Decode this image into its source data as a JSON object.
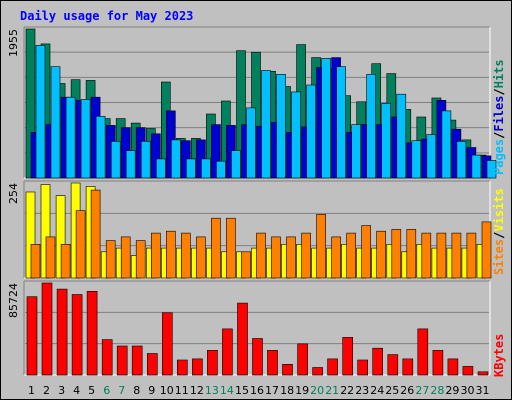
{
  "colors": {
    "background": "#c0c0c0",
    "hits": "#00805c",
    "files": "#0000d0",
    "pages": "#00c0ff",
    "visits": "#ffff00",
    "sites": "#ff8000",
    "kbytes": "#ff0000",
    "title": "#0000ff",
    "weekend_label": "#00805c"
  },
  "chart_data": {
    "type": "bar",
    "title": "Daily usage for May 2023",
    "categories": [
      "1",
      "2",
      "3",
      "4",
      "5",
      "6",
      "7",
      "8",
      "9",
      "10",
      "11",
      "12",
      "13",
      "14",
      "15",
      "16",
      "17",
      "18",
      "19",
      "20",
      "21",
      "22",
      "23",
      "24",
      "25",
      "26",
      "27",
      "28",
      "29",
      "30",
      "31"
    ],
    "weekend_days": [
      "6",
      "7",
      "13",
      "14",
      "20",
      "21",
      "27",
      "28"
    ],
    "panels": [
      {
        "name": "top",
        "scale_label": "1955",
        "ymax": 1955,
        "legend": [
          "Pages",
          "/",
          "Files",
          "/",
          "Hits"
        ],
        "legend_colors": [
          "pages",
          "black",
          "files",
          "black",
          "hits"
        ],
        "series": [
          {
            "name": "Hits",
            "color": "hits",
            "values": [
              1955,
              1760,
              1240,
              1290,
              1280,
              780,
              780,
              720,
              650,
              1260,
              520,
              520,
              840,
              1010,
              1670,
              1650,
              1400,
              1200,
              1750,
              1580,
              1440,
              1080,
              1000,
              1500,
              1370,
              900,
              800,
              1050,
              760,
              500,
              300
            ]
          },
          {
            "name": "Files",
            "color": "files",
            "values": [
              600,
              700,
              1060,
              1020,
              1060,
              690,
              660,
              660,
              580,
              880,
              490,
              500,
              700,
              690,
              700,
              680,
              730,
              600,
              670,
              1450,
              1580,
              600,
              700,
              700,
              800,
              460,
              510,
              1020,
              640,
              400,
              290
            ]
          },
          {
            "name": "Pages",
            "color": "pages",
            "values": [
              1740,
              1460,
              1060,
              1030,
              810,
              480,
              360,
              480,
              250,
              500,
              250,
              250,
              220,
              360,
              920,
              1410,
              1360,
              1130,
              1220,
              1570,
              1460,
              700,
              1360,
              980,
              1100,
              490,
              570,
              880,
              480,
              300,
              230
            ]
          }
        ]
      },
      {
        "name": "middle",
        "scale_label": "254",
        "ymax": 254,
        "legend": [
          "Sites",
          "/",
          "Visits"
        ],
        "legend_colors": [
          "sites",
          "black",
          "visits"
        ],
        "series": [
          {
            "name": "Visits",
            "color": "visits",
            "values": [
              230,
              250,
              220,
              254,
              245,
              70,
              80,
              60,
              80,
              80,
              80,
              80,
              80,
              70,
              70,
              80,
              80,
              90,
              90,
              80,
              80,
              90,
              80,
              80,
              90,
              70,
              90,
              80,
              80,
              80,
              90
            ]
          },
          {
            "name": "Sites",
            "color": "sites",
            "values": [
              90,
              110,
              90,
              180,
              235,
              100,
              110,
              100,
              120,
              125,
              120,
              110,
              160,
              160,
              70,
              120,
              110,
              110,
              120,
              170,
              110,
              120,
              140,
              125,
              130,
              130,
              120,
              120,
              120,
              120,
              150
            ]
          }
        ]
      },
      {
        "name": "bottom",
        "scale_label": "85724",
        "ymax": 85724,
        "legend": [
          "KBytes"
        ],
        "legend_colors": [
          "kbytes"
        ],
        "series": [
          {
            "name": "KBytes",
            "color": "kbytes",
            "values": [
              73000,
              85724,
              80000,
              75000,
              78000,
              33000,
              27000,
              27000,
              20000,
              58000,
              14000,
              15000,
              23000,
              43000,
              67000,
              34000,
              23000,
              10000,
              29000,
              7000,
              15000,
              35000,
              14000,
              25000,
              19000,
              15000,
              43000,
              23000,
              15000,
              8000,
              3000
            ]
          }
        ]
      }
    ]
  }
}
